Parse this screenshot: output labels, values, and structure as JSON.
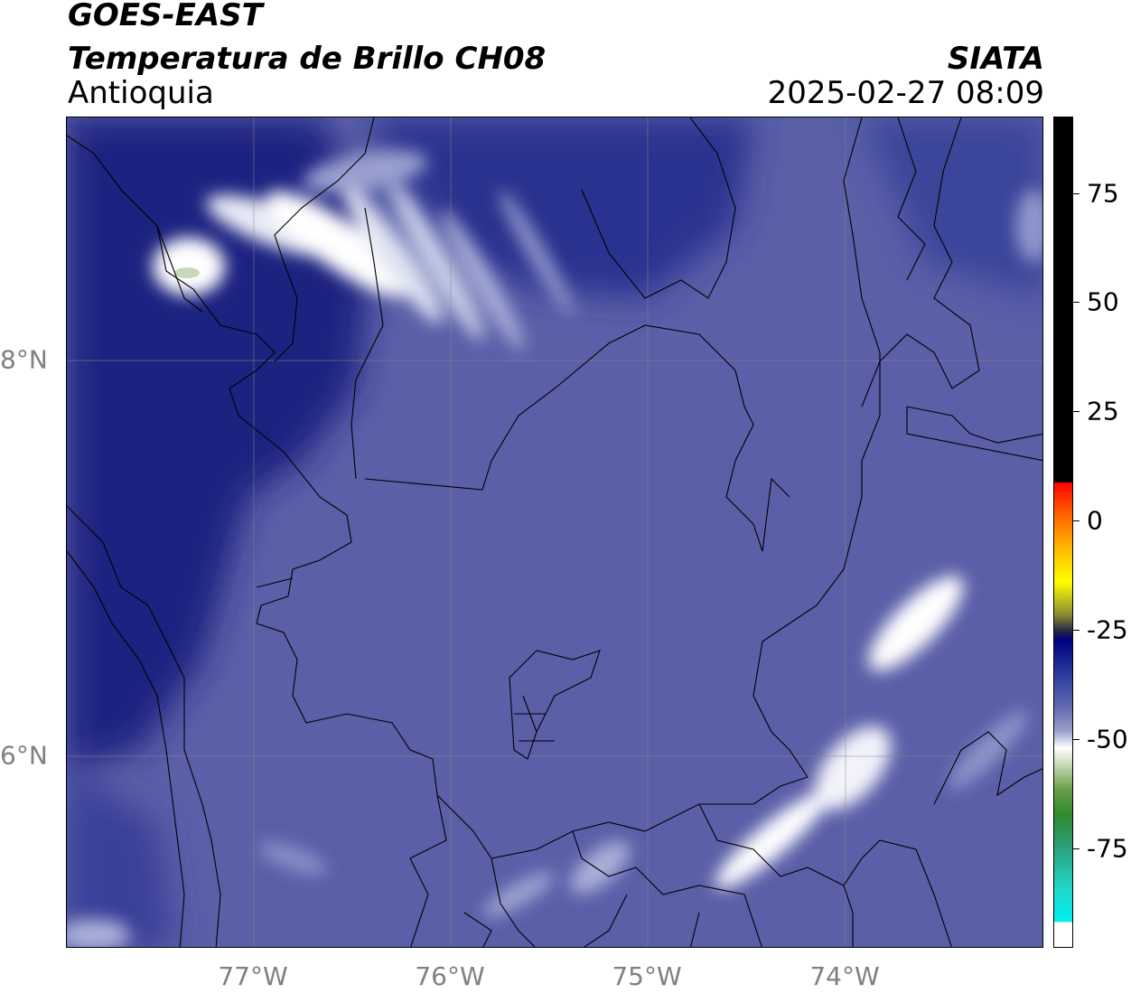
{
  "header": {
    "satellite": "GOES-EAST",
    "product": "Temperatura de Brillo CH08",
    "region": "Antioquia",
    "organization": "SIATA",
    "timestamp": "2025-02-27 08:09"
  },
  "map": {
    "x_ticks": [
      "77°W",
      "76°W",
      "75°W",
      "74°W"
    ],
    "y_ticks": [
      "8°N",
      "6°N"
    ],
    "colors": {
      "background": "#5a5fa8",
      "dark": "#1c2480",
      "cloud": "#ffffff"
    }
  },
  "colorbar": {
    "ticks": [
      "75",
      "50",
      "25",
      "0",
      "-25",
      "-50",
      "-75"
    ]
  }
}
